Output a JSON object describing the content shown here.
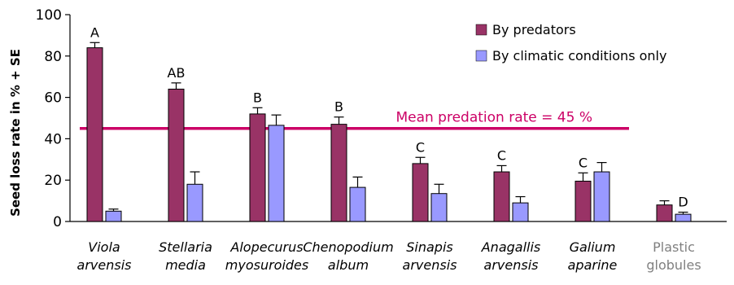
{
  "chart_data": {
    "type": "bar",
    "title": "",
    "ylabel": "Seed loss rate in % + SE",
    "ylim": [
      0,
      100
    ],
    "yticks": [
      0,
      20,
      40,
      60,
      80,
      100
    ],
    "grid": false,
    "legend_position": "top-right",
    "categories": [
      {
        "line1": "Viola",
        "line2": "arvensis",
        "style": "italic"
      },
      {
        "line1": "Stellaria",
        "line2": "media",
        "style": "italic"
      },
      {
        "line1": "Alopecurus",
        "line2": "myosuroides",
        "style": "italic"
      },
      {
        "line1": "Chenopodium",
        "line2": "album",
        "style": "italic"
      },
      {
        "line1": "Sinapis",
        "line2": "arvensis",
        "style": "italic"
      },
      {
        "line1": "Anagallis",
        "line2": "arvensis",
        "style": "italic"
      },
      {
        "line1": "Galium",
        "line2": "aparine",
        "style": "italic"
      },
      {
        "line1": "Plastic",
        "line2": "globules",
        "style": "gray"
      }
    ],
    "series": [
      {
        "name": "By predators",
        "color": "#993366",
        "values": [
          84,
          64,
          52,
          47,
          28,
          24,
          19.5,
          8
        ],
        "errors": [
          2.5,
          3,
          3,
          3.5,
          3,
          3,
          4,
          2
        ],
        "letters": [
          "A",
          "AB",
          "B",
          "B",
          "C",
          "C",
          "C",
          ""
        ]
      },
      {
        "name": "By climatic conditions only",
        "color": "#9999FF",
        "values": [
          5,
          18,
          46.5,
          16.5,
          13.5,
          9,
          24,
          3.5
        ],
        "errors": [
          1,
          6,
          5,
          5,
          4.5,
          3,
          4.5,
          1
        ],
        "letters": [
          "",
          "",
          "",
          "",
          "",
          "",
          "",
          "D"
        ]
      }
    ],
    "reference_line": {
      "value": 45,
      "label": "Mean predation rate = 45 %",
      "color": "#CC0066"
    }
  }
}
